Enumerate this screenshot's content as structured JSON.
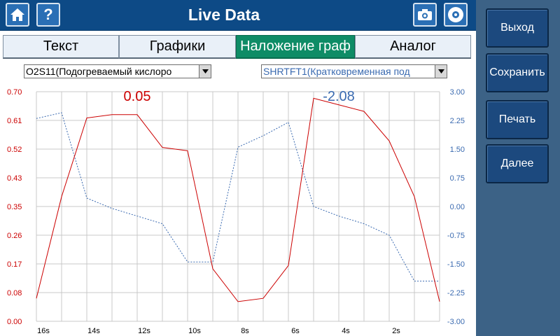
{
  "app": {
    "title": "Live Data"
  },
  "toolbar": {
    "home_icon": "home-icon",
    "help_label": "?",
    "camera_icon": "camera-icon",
    "disc_icon": "disc-icon"
  },
  "side_menu": {
    "items": [
      {
        "label": "Выход"
      },
      {
        "label": "Сохранить"
      },
      {
        "label": "Печать"
      },
      {
        "label": "Далее"
      }
    ]
  },
  "tabs": [
    {
      "label": "Текст",
      "active": false
    },
    {
      "label": "Графики",
      "active": false
    },
    {
      "label": "Наложение граф",
      "active": true
    },
    {
      "label": "Аналог",
      "active": false
    }
  ],
  "selectors": {
    "left": {
      "value": "O2S11(Подогреваемый кислоро"
    },
    "right": {
      "value": "SHRTFT1(Кратковременная под"
    }
  },
  "readouts": {
    "left_value": "0.05",
    "right_value": "-2.08"
  },
  "colors": {
    "left_series": "#cc0000",
    "right_series": "#3a6ab0",
    "accent": "#0e8c66",
    "header": "#0d4a86"
  },
  "chart_data": {
    "type": "line",
    "x_tick_labels": [
      "16s",
      "14s",
      "12s",
      "10s",
      "8s",
      "6s",
      "4s",
      "2s"
    ],
    "left_axis": {
      "ticks": [
        "0.70",
        "0.61",
        "0.52",
        "0.43",
        "0.35",
        "0.26",
        "0.17",
        "0.08",
        "0.00"
      ],
      "ylim": [
        0,
        0.7
      ]
    },
    "right_axis": {
      "ticks": [
        "3.00",
        "2.25",
        "1.50",
        "0.75",
        "0.00",
        "-0.75",
        "-1.50",
        "-2.25",
        "-3.00"
      ],
      "ylim": [
        -3.0,
        3.0
      ]
    },
    "x": [
      16,
      15,
      14,
      13,
      12,
      11,
      10,
      9,
      8,
      7,
      6,
      5,
      4,
      3,
      2,
      1,
      0
    ],
    "series": [
      {
        "axis": "left",
        "values": [
          0.07,
          0.38,
          0.62,
          0.63,
          0.63,
          0.53,
          0.52,
          0.16,
          0.06,
          0.07,
          0.17,
          0.68,
          0.66,
          0.64,
          0.55,
          0.38,
          0.06
        ]
      },
      {
        "axis": "right",
        "values": [
          2.3,
          2.45,
          0.22,
          -0.05,
          -0.25,
          -0.45,
          -1.45,
          -1.45,
          1.55,
          1.85,
          2.2,
          0.0,
          -0.25,
          -0.45,
          -0.75,
          -1.95,
          -1.95
        ]
      }
    ],
    "grid": true
  }
}
